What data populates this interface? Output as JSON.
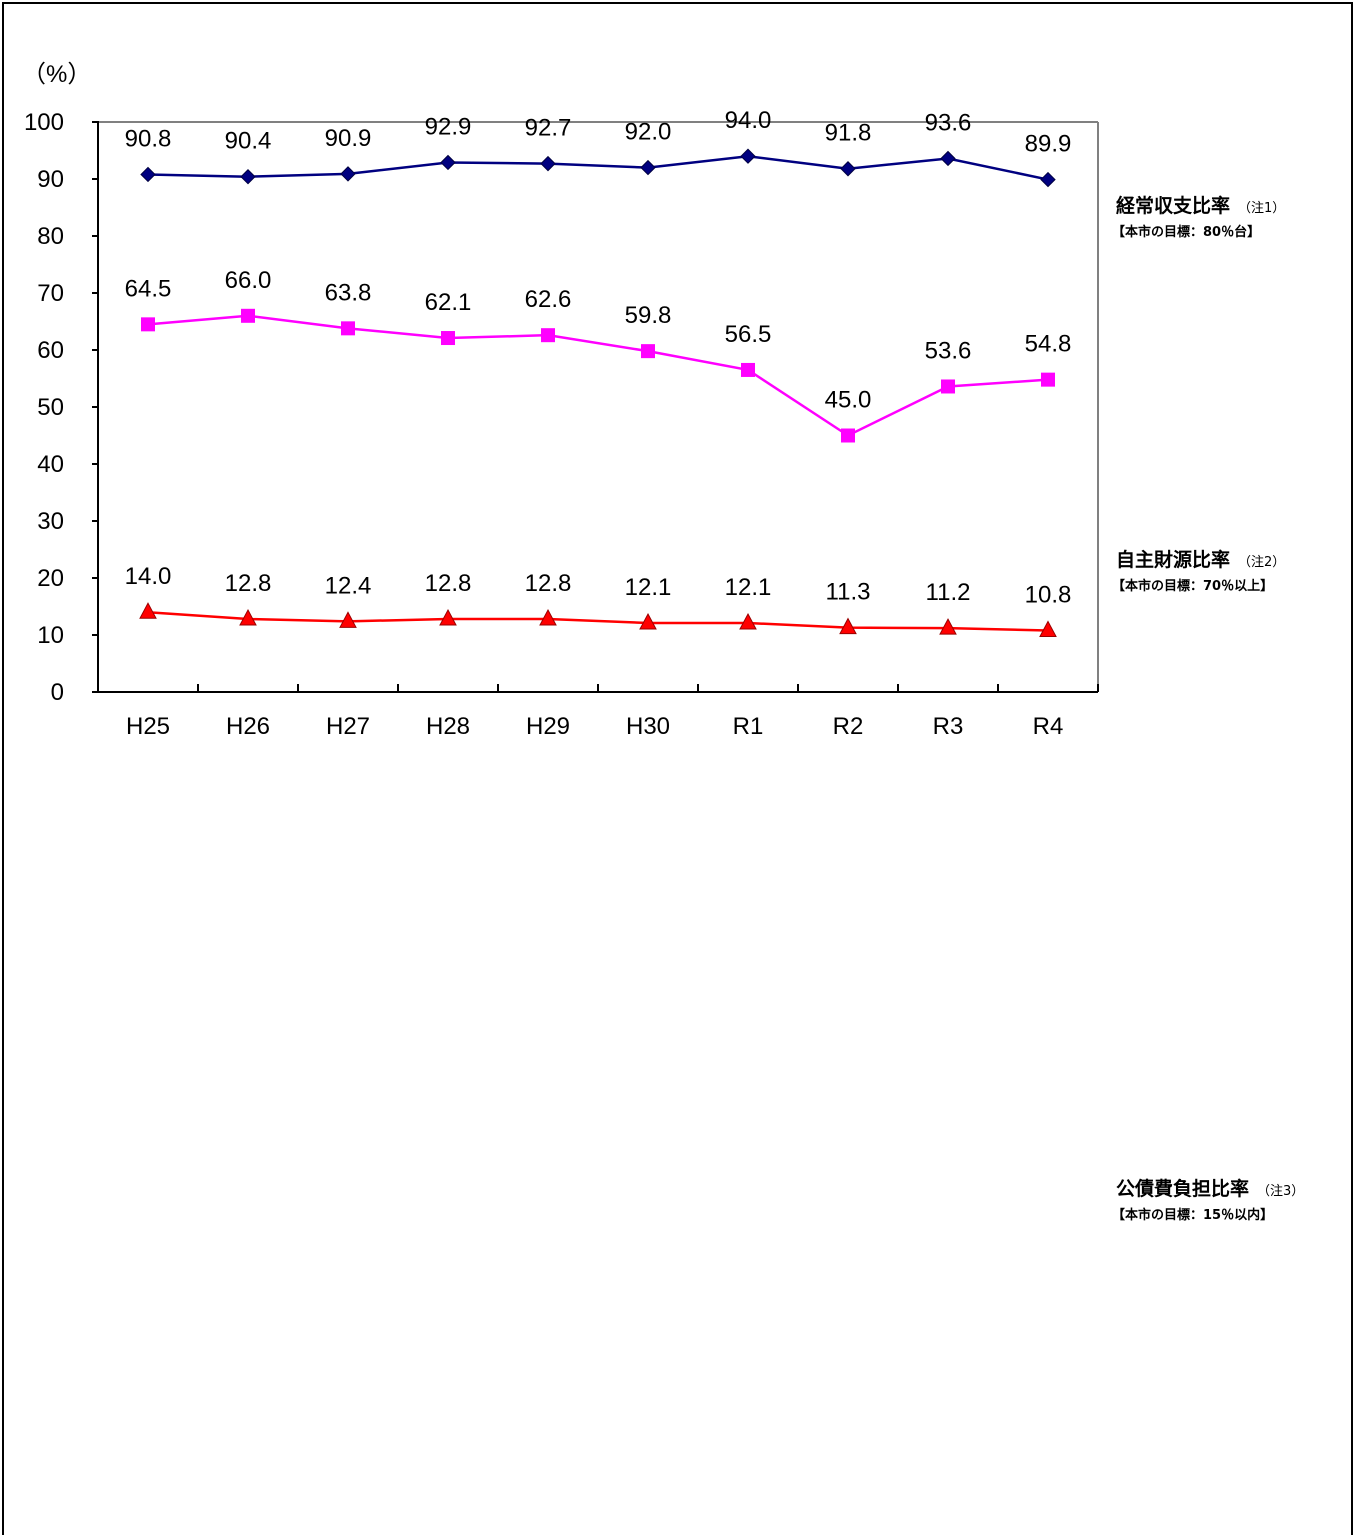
{
  "chart_data": {
    "type": "line",
    "unit_label": "（%）",
    "categories": [
      "H25",
      "H26",
      "H27",
      "H28",
      "H29",
      "H30",
      "R1",
      "R2",
      "R3",
      "R4"
    ],
    "ylim": [
      0,
      100
    ],
    "yticks": [
      "0",
      "10",
      "20",
      "30",
      "40",
      "50",
      "60",
      "70",
      "80",
      "90",
      "100"
    ],
    "grid": false,
    "legend_placement": "right",
    "series": [
      {
        "name": "経常収支比率",
        "note": "（注1）",
        "goal": "【本市の目標：80％台】",
        "marker": "diamond",
        "color": "#000080",
        "values": [
          90.8,
          90.4,
          90.9,
          92.9,
          92.7,
          92.0,
          94.0,
          91.8,
          93.6,
          89.9
        ],
        "labels": [
          "90.8",
          "90.4",
          "90.9",
          "92.9",
          "92.7",
          "92.0",
          "94.0",
          "91.8",
          "93.6",
          "89.9"
        ]
      },
      {
        "name": "自主財源比率",
        "note": "（注2）",
        "goal": "【本市の目標：70％以上】",
        "marker": "square",
        "color": "#FF00FF",
        "values": [
          64.5,
          66.0,
          63.8,
          62.1,
          62.6,
          59.8,
          56.5,
          45.0,
          53.6,
          54.8
        ],
        "labels": [
          "64.5",
          "66.0",
          "63.8",
          "62.1",
          "62.6",
          "59.8",
          "56.5",
          "45.0",
          "53.6",
          "54.8"
        ]
      },
      {
        "name": "公債費負担比率",
        "note": "（注3）",
        "goal": "【本市の目標：15％以内】",
        "marker": "triangle",
        "color": "#FF0000",
        "values": [
          14.0,
          12.8,
          12.4,
          12.8,
          12.8,
          12.1,
          12.1,
          11.3,
          11.2,
          10.8
        ],
        "labels": [
          "14.0",
          "12.8",
          "12.4",
          "12.8",
          "12.8",
          "12.1",
          "12.1",
          "11.3",
          "11.2",
          "10.8"
        ]
      }
    ]
  }
}
